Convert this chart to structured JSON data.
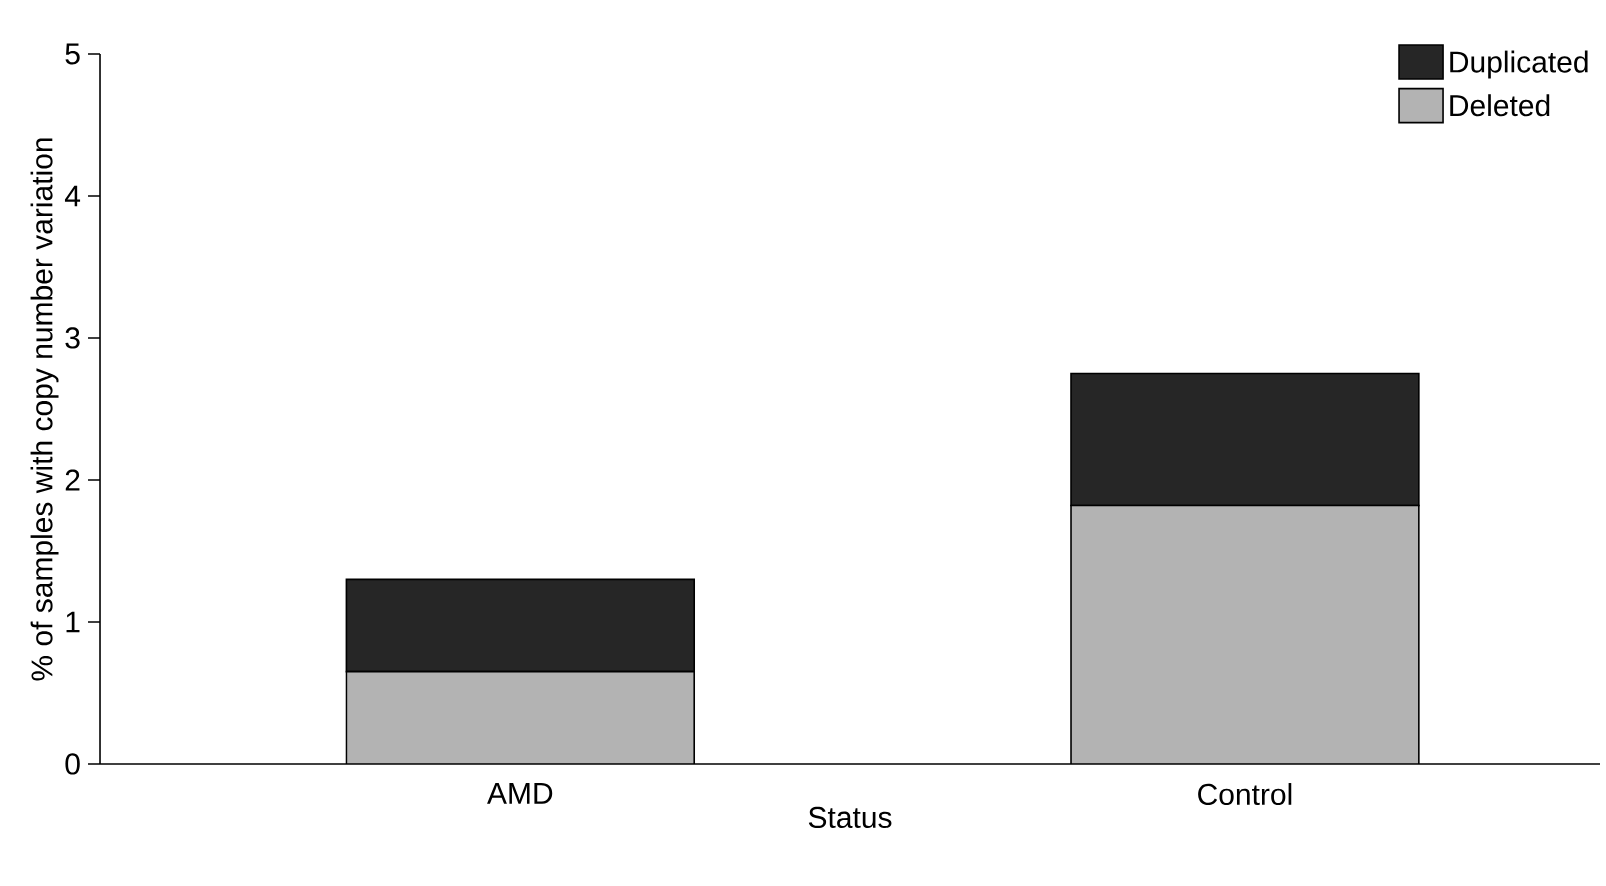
{
  "chart_data": {
    "type": "bar",
    "stacked": true,
    "xlabel": "Status",
    "ylabel": "% of samples with copy number variation",
    "categories": [
      "AMD",
      "Control"
    ],
    "series": [
      {
        "name": "Deleted",
        "color": "#b3b3b3",
        "values": [
          0.65,
          1.82
        ]
      },
      {
        "name": "Duplicated",
        "color": "#262626",
        "values": [
          0.65,
          0.93
        ]
      }
    ],
    "ylim": [
      0,
      5
    ],
    "yticks": [
      0,
      1,
      2,
      3,
      4,
      5
    ],
    "grid": false,
    "legend": "top right"
  }
}
